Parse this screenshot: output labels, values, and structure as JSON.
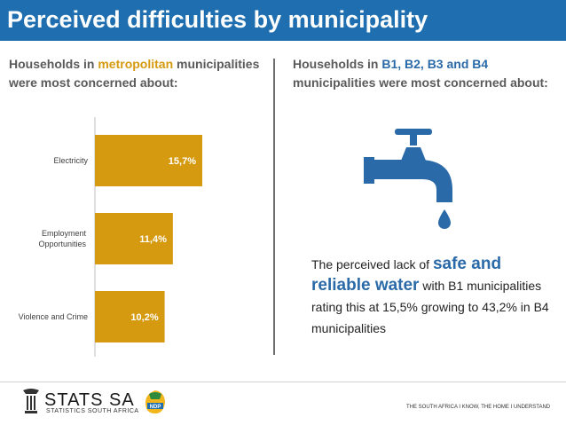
{
  "header": {
    "title": "Perceived difficulties by municipality"
  },
  "left_panel": {
    "heading_before": "Households in ",
    "heading_highlight": "metropolitan",
    "heading_after": " municipalities were most concerned about:"
  },
  "right_panel": {
    "heading_before": "Households in ",
    "heading_highlight": "B1, B2, B3 and B4",
    "heading_after": " municipalities were most concerned about:",
    "note_before": "The perceived lack of ",
    "note_highlight": "safe and reliable water",
    "note_after": " with  B1 municipalities rating this at 15,5% growing to 43,2% in B4 municipalities",
    "icon": "water-tap-icon"
  },
  "chart_data": {
    "type": "bar",
    "orientation": "horizontal",
    "categories": [
      "Electricity",
      "Employment Opportunities",
      "Violence and Crime"
    ],
    "values": [
      15.7,
      11.4,
      10.2
    ],
    "data_labels": [
      "15,7%",
      "11,4%",
      "10,2%"
    ],
    "xlim": [
      0,
      16
    ],
    "grid": false,
    "colors": {
      "bar": "#d59a0f",
      "label": "#ffffff"
    }
  },
  "footer": {
    "logo_name": "STATS SA",
    "logo_subtitle": "STATISTICS SOUTH AFRICA",
    "ndp_logo": "NDP",
    "tagline": "THE SOUTH AFRICA I KNOW, THE HOME I UNDERSTAND"
  },
  "colors": {
    "title_bar": "#1f6fb0",
    "accent_gold": "#d59a0f",
    "accent_blue": "#2b6aa8"
  }
}
